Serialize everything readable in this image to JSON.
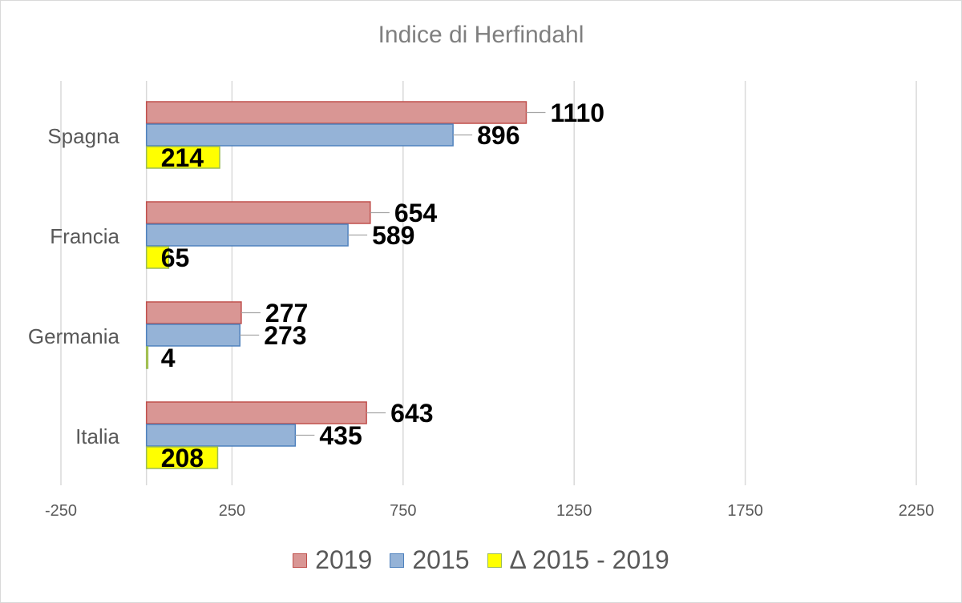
{
  "chart_data": {
    "type": "bar",
    "orientation": "horizontal",
    "title": "Indice di Herfindahl",
    "categories": [
      "Spagna",
      "Francia",
      "Germania",
      "Italia"
    ],
    "series": [
      {
        "name": "2019",
        "values": [
          1110,
          654,
          277,
          643
        ],
        "color": "#d99694",
        "border": "#c0504d"
      },
      {
        "name": "2015",
        "values": [
          896,
          589,
          273,
          435
        ],
        "color": "#95b3d7",
        "border": "#4f81bd"
      },
      {
        "name": "Δ 2015 - 2019",
        "values": [
          214,
          65,
          4,
          208
        ],
        "color": "#ffff00",
        "border": "#9bbb59"
      }
    ],
    "xlim": [
      -250,
      2250
    ],
    "xticks": [
      -250,
      250,
      750,
      1250,
      1750,
      2250
    ],
    "grid": true,
    "data_labels": true,
    "legend_position": "bottom"
  }
}
